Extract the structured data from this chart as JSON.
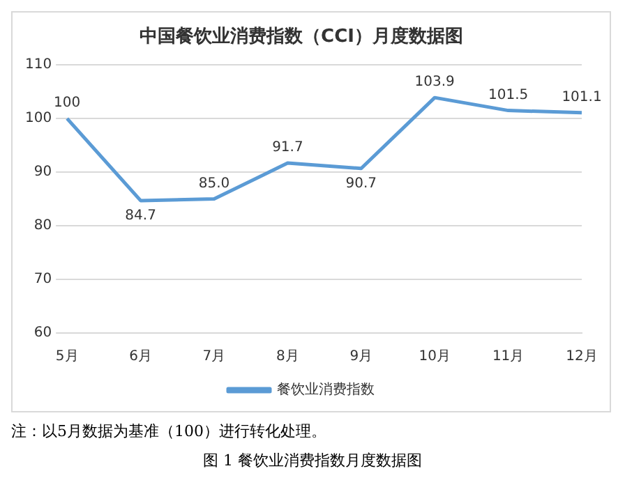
{
  "chart_data": {
    "type": "line",
    "title": "中国餐饮业消费指数（CCI）月度数据图",
    "categories": [
      "5月",
      "6月",
      "7月",
      "8月",
      "9月",
      "10月",
      "11月",
      "12月"
    ],
    "series": [
      {
        "name": "餐饮业消费指数",
        "color": "#5b9bd5",
        "values": [
          100,
          84.7,
          85.0,
          91.7,
          90.7,
          103.9,
          101.5,
          101.1
        ],
        "value_labels": [
          "100",
          "84.7",
          "85.0",
          "91.7",
          "90.7",
          "103.9",
          "101.5",
          "101.1"
        ]
      }
    ],
    "ylim": [
      60,
      110
    ],
    "yticks": [
      60,
      70,
      80,
      90,
      100,
      110
    ],
    "grid": "y",
    "legend": "bottom",
    "marker": "none",
    "line_style": "solid",
    "annotations": [
      "注：以5月数据为基准（100）进行转化处理。",
      "图 1 餐饮业消费指数月度数据图"
    ]
  }
}
